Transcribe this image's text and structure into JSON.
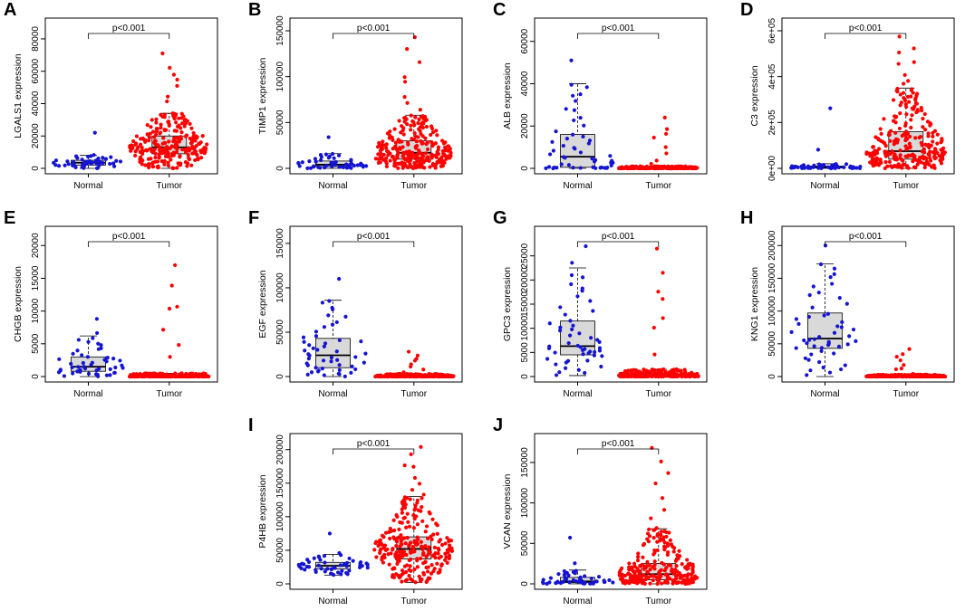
{
  "figure": {
    "colors": {
      "normal": "#1414d2",
      "tumor": "#ff0000",
      "box_fill": "#d9d9d9",
      "frame": "#000000"
    },
    "panels": [
      {
        "letter": "A",
        "ylabel": "LGALS1 expression",
        "pvalue": "p<0.001"
      },
      {
        "letter": "B",
        "ylabel": "TIMP1 expression",
        "pvalue": "p<0.001"
      },
      {
        "letter": "C",
        "ylabel": "ALB expression",
        "pvalue": "p<0.001"
      },
      {
        "letter": "D",
        "ylabel": "C3 expression",
        "pvalue": "p<0.001"
      },
      {
        "letter": "E",
        "ylabel": "CHGB expression",
        "pvalue": "p<0.001"
      },
      {
        "letter": "F",
        "ylabel": "EGF expression",
        "pvalue": "p<0.001"
      },
      {
        "letter": "G",
        "ylabel": "GPC3 expression",
        "pvalue": "p<0.001"
      },
      {
        "letter": "H",
        "ylabel": "KNG1 expression",
        "pvalue": "p<0.001"
      },
      {
        "letter": "I",
        "ylabel": "P4HB expression",
        "pvalue": "p<0.001"
      },
      {
        "letter": "J",
        "ylabel": "VCAN expression",
        "pvalue": "p<0.001"
      }
    ]
  },
  "chart_data": [
    {
      "type": "box",
      "panel": "A",
      "title": "",
      "ylabel": "LGALS1 expression",
      "categories": [
        "Normal",
        "Tumor"
      ],
      "ylim": [
        0,
        85000
      ],
      "yticks": [
        0,
        20000,
        40000,
        60000,
        80000
      ],
      "ytick_labels": [
        "0",
        "20000",
        "40000",
        "60000",
        "80000"
      ],
      "annotation": "p<0.001",
      "series": [
        {
          "name": "Normal",
          "n": 50,
          "q1": 2000,
          "median": 3500,
          "q3": 5000,
          "whisker_low": 0,
          "whisker_high": 8000,
          "max": 22000
        },
        {
          "name": "Tumor",
          "n": 370,
          "q1": 9000,
          "median": 13000,
          "q3": 20000,
          "whisker_low": 0,
          "whisker_high": 34000,
          "max": 71000
        }
      ]
    },
    {
      "type": "box",
      "panel": "B",
      "title": "",
      "ylabel": "TIMP1 expression",
      "categories": [
        "Normal",
        "Tumor"
      ],
      "ylim": [
        0,
        150000
      ],
      "yticks": [
        0,
        50000,
        100000,
        150000
      ],
      "ytick_labels": [
        "0",
        "50000",
        "100000",
        "150000"
      ],
      "annotation": "p<0.001",
      "series": [
        {
          "name": "Normal",
          "n": 50,
          "q1": 2000,
          "median": 4000,
          "q3": 8000,
          "whisker_low": 0,
          "whisker_high": 16000,
          "max": 34000
        },
        {
          "name": "Tumor",
          "n": 370,
          "q1": 10000,
          "median": 17000,
          "q3": 30000,
          "whisker_low": 0,
          "whisker_high": 58000,
          "max": 143000
        }
      ]
    },
    {
      "type": "box",
      "panel": "C",
      "title": "",
      "ylabel": "ALB expression",
      "categories": [
        "Normal",
        "Tumor"
      ],
      "ylim": [
        0,
        65000
      ],
      "yticks": [
        0,
        20000,
        40000,
        60000
      ],
      "ytick_labels": [
        "0",
        "20000",
        "40000",
        "60000"
      ],
      "annotation": "p<0.001",
      "series": [
        {
          "name": "Normal",
          "n": 50,
          "q1": 500,
          "median": 5500,
          "q3": 16000,
          "whisker_low": 0,
          "whisker_high": 40000,
          "max": 51000
        },
        {
          "name": "Tumor",
          "n": 370,
          "q1": 50,
          "median": 150,
          "q3": 500,
          "whisker_low": 0,
          "whisker_high": 1000,
          "max": 24000
        }
      ]
    },
    {
      "type": "box",
      "panel": "D",
      "title": "",
      "ylabel": "C3 expression",
      "categories": [
        "Normal",
        "Tumor"
      ],
      "ylim": [
        0,
        600000
      ],
      "yticks": [
        0,
        200000,
        400000,
        600000
      ],
      "ytick_labels": [
        "0e+00",
        "2e+05",
        "4e+05",
        "6e+05"
      ],
      "annotation": "p<0.001",
      "series": [
        {
          "name": "Normal",
          "n": 50,
          "q1": 2000,
          "median": 5000,
          "q3": 10000,
          "whisker_low": 0,
          "whisker_high": 20000,
          "max": 262000
        },
        {
          "name": "Tumor",
          "n": 370,
          "q1": 40000,
          "median": 75000,
          "q3": 160000,
          "whisker_low": 0,
          "whisker_high": 350000,
          "max": 575000
        }
      ]
    },
    {
      "type": "box",
      "panel": "E",
      "title": "",
      "ylabel": "CHGB expression",
      "categories": [
        "Normal",
        "Tumor"
      ],
      "ylim": [
        0,
        21000
      ],
      "yticks": [
        0,
        5000,
        10000,
        15000,
        20000
      ],
      "ytick_labels": [
        "0",
        "5000",
        "10000",
        "15000",
        "20000"
      ],
      "annotation": "p<0.001",
      "series": [
        {
          "name": "Normal",
          "n": 50,
          "q1": 800,
          "median": 1500,
          "q3": 3000,
          "whisker_low": 0,
          "whisker_high": 6200,
          "max": 8800
        },
        {
          "name": "Tumor",
          "n": 370,
          "q1": 10,
          "median": 50,
          "q3": 200,
          "whisker_low": 0,
          "whisker_high": 500,
          "max": 17000
        }
      ]
    },
    {
      "type": "box",
      "panel": "F",
      "title": "",
      "ylabel": "EGF expression",
      "categories": [
        "Normal",
        "Tumor"
      ],
      "ylim": [
        0,
        155000
      ],
      "yticks": [
        0,
        50000,
        100000,
        150000
      ],
      "ytick_labels": [
        "0",
        "50000",
        "100000",
        "150000"
      ],
      "annotation": "p<0.001",
      "series": [
        {
          "name": "Normal",
          "n": 50,
          "q1": 10000,
          "median": 24000,
          "q3": 43000,
          "whisker_low": 0,
          "whisker_high": 86000,
          "max": 110000
        },
        {
          "name": "Tumor",
          "n": 370,
          "q1": 100,
          "median": 500,
          "q3": 1500,
          "whisker_low": 0,
          "whisker_high": 3000,
          "max": 28000
        }
      ]
    },
    {
      "type": "box",
      "panel": "G",
      "title": "",
      "ylabel": "GPC3 expression",
      "categories": [
        "Normal",
        "Tumor"
      ],
      "ylim": [
        0,
        28500
      ],
      "yticks": [
        0,
        5000,
        10000,
        15000,
        20000,
        25000
      ],
      "ytick_labels": [
        "0",
        "5000",
        "10000",
        "15000",
        "20000",
        "25000"
      ],
      "annotation": "p<0.001",
      "series": [
        {
          "name": "Normal",
          "n": 50,
          "q1": 4500,
          "median": 6300,
          "q3": 11500,
          "whisker_low": 200,
          "whisker_high": 22500,
          "max": 27000
        },
        {
          "name": "Tumor",
          "n": 370,
          "q1": 50,
          "median": 200,
          "q3": 600,
          "whisker_low": 0,
          "whisker_high": 1500,
          "max": 26500
        }
      ]
    },
    {
      "type": "box",
      "panel": "H",
      "title": "",
      "ylabel": "KNG1 expression",
      "categories": [
        "Normal",
        "Tumor"
      ],
      "ylim": [
        0,
        210000
      ],
      "yticks": [
        0,
        50000,
        100000,
        150000,
        200000
      ],
      "ytick_labels": [
        "0",
        "50000",
        "100000",
        "150000",
        "200000"
      ],
      "annotation": "p<0.001",
      "series": [
        {
          "name": "Normal",
          "n": 50,
          "q1": 43000,
          "median": 58000,
          "q3": 97000,
          "whisker_low": 0,
          "whisker_high": 172000,
          "max": 200000
        },
        {
          "name": "Tumor",
          "n": 370,
          "q1": 100,
          "median": 500,
          "q3": 1500,
          "whisker_low": 0,
          "whisker_high": 3000,
          "max": 42000
        }
      ]
    },
    {
      "type": "box",
      "panel": "I",
      "title": "",
      "ylabel": "P4HB expression",
      "categories": [
        "Normal",
        "Tumor"
      ],
      "ylim": [
        0,
        205000
      ],
      "yticks": [
        0,
        50000,
        100000,
        150000,
        200000
      ],
      "ytick_labels": [
        "0",
        "50000",
        "100000",
        "150000",
        "200000"
      ],
      "annotation": "p<0.001",
      "series": [
        {
          "name": "Normal",
          "n": 50,
          "q1": 22000,
          "median": 27000,
          "q3": 32000,
          "whisker_low": 13000,
          "whisker_high": 44000,
          "max": 75000
        },
        {
          "name": "Tumor",
          "n": 370,
          "q1": 37000,
          "median": 52000,
          "q3": 70000,
          "whisker_low": 2000,
          "whisker_high": 130000,
          "max": 204000
        }
      ]
    },
    {
      "type": "box",
      "panel": "J",
      "title": "",
      "ylabel": "VCAN expression",
      "categories": [
        "Normal",
        "Tumor"
      ],
      "ylim": [
        0,
        170000
      ],
      "yticks": [
        0,
        50000,
        100000,
        150000
      ],
      "ytick_labels": [
        "0",
        "50000",
        "100000",
        "150000"
      ],
      "annotation": "p<0.001",
      "series": [
        {
          "name": "Normal",
          "n": 50,
          "q1": 1500,
          "median": 3000,
          "q3": 8000,
          "whisker_low": 0,
          "whisker_high": 17000,
          "max": 57000
        },
        {
          "name": "Tumor",
          "n": 370,
          "q1": 5000,
          "median": 12000,
          "q3": 25000,
          "whisker_low": 0,
          "whisker_high": 68000,
          "max": 168000
        }
      ]
    }
  ]
}
